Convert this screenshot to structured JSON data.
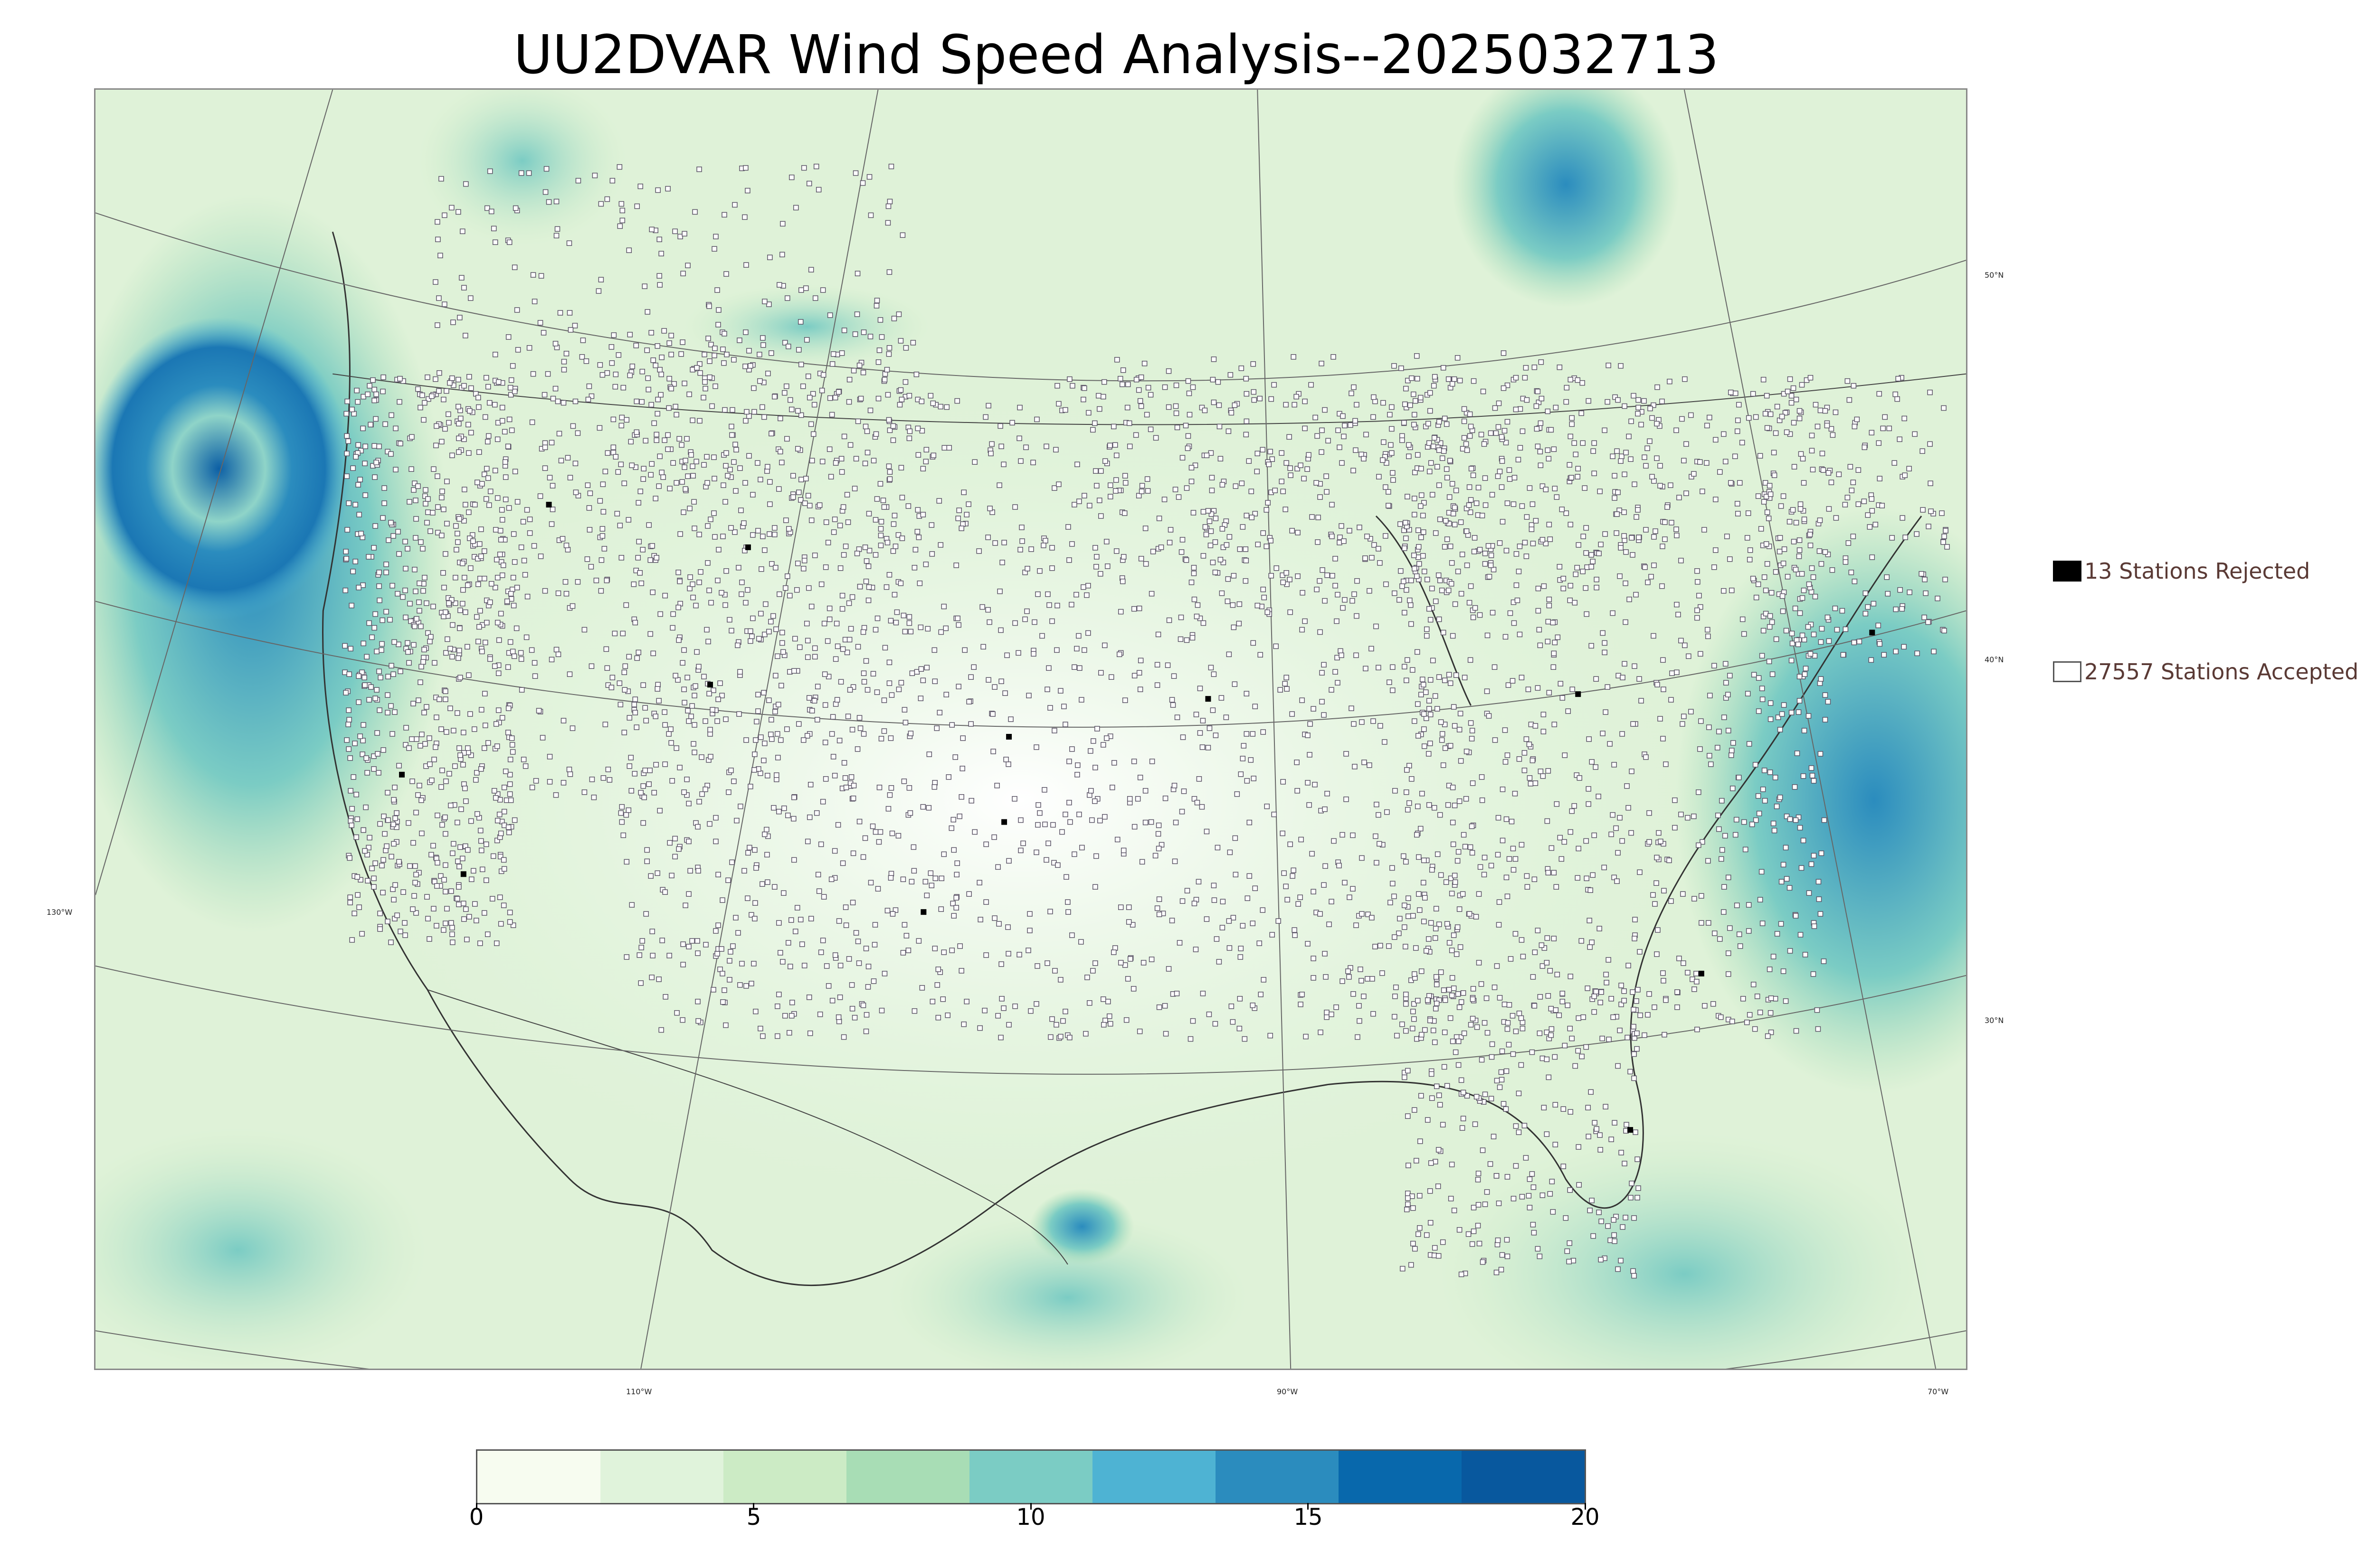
{
  "title": "UU2DVAR Wind Speed Analysis--2025032713",
  "map": {
    "lat_labels": [
      "50°N",
      "40°N",
      "30°N"
    ],
    "lon_labels": [
      "130°W",
      "110°W",
      "90°W",
      "70°W"
    ]
  },
  "legend": {
    "rejected": {
      "label": "13 Stations Rejected",
      "swatch_color": "#000000"
    },
    "accepted": {
      "label": "27557 Stations Accepted",
      "swatch_color": "#ffffff"
    }
  },
  "colorbar": {
    "ticks": [
      "0",
      "5",
      "10",
      "15",
      "20"
    ],
    "range": [
      0,
      20
    ],
    "colors": [
      "#f7fcf0",
      "#e0f3db",
      "#ccebc5",
      "#a8ddb5",
      "#7bccc4",
      "#4eb3d3",
      "#2b8cbe",
      "#0868ac",
      "#08589e"
    ]
  }
}
